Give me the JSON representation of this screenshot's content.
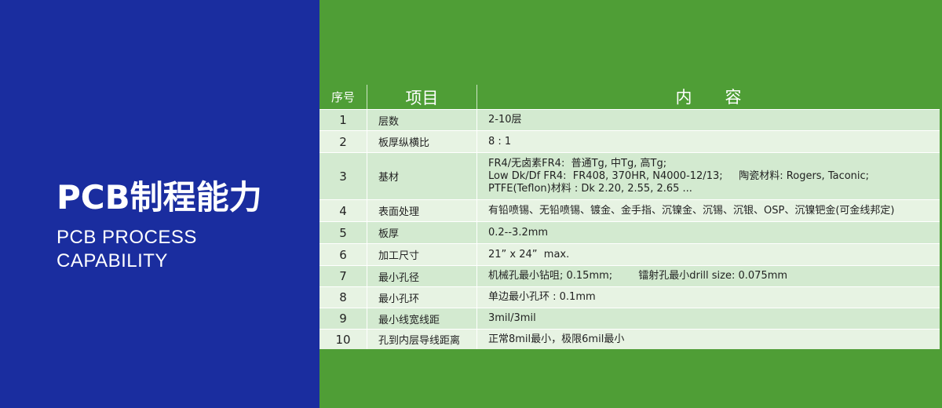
{
  "left_panel": {
    "title": "PCB制程能力",
    "subtitle_line1": "PCB PROCESS",
    "subtitle_line2": "CAPABILITY"
  },
  "table": {
    "headers": [
      "序号",
      "项目",
      "内　　容"
    ],
    "rows": [
      {
        "no": "1",
        "item": "层数",
        "content": [
          "2-10层"
        ]
      },
      {
        "no": "2",
        "item": "板厚纵横比",
        "content": [
          "8 : 1"
        ]
      },
      {
        "no": "3",
        "item": "基材",
        "content": [
          "FR4/无卤素FR4:  普通Tg, 中Tg, 高Tg;",
          "Low Dk/Df FR4:  FR408, 370HR, N4000-12/13;     陶瓷材料: Rogers, Taconic;",
          "PTFE(Teflon)材料 : Dk 2.20, 2.55, 2.65 ..."
        ]
      },
      {
        "no": "4",
        "item": "表面处理",
        "content": [
          "有铅喷锡、无铅喷锡、镀金、金手指、沉镍金、沉锡、沉银、OSP、沉镍钯金(可金线邦定)"
        ]
      },
      {
        "no": "5",
        "item": "板厚",
        "content": [
          "0.2--3.2mm"
        ]
      },
      {
        "no": "6",
        "item": "加工尺寸",
        "content": [
          "21” x 24”  max."
        ]
      },
      {
        "no": "7",
        "item": "最小孔径",
        "content": [
          "机械孔最小钻咀; 0.15mm;        镭射孔最小drill size: 0.075mm"
        ]
      },
      {
        "no": "8",
        "item": "最小孔环",
        "content": [
          "单边最小孔环 : 0.1mm"
        ]
      },
      {
        "no": "9",
        "item": "最小线宽线距",
        "content": [
          "3mil/3mil"
        ]
      },
      {
        "no": "10",
        "item": "孔到内层导线距离",
        "content": [
          "正常8mil最小，极限6mil最小"
        ]
      }
    ]
  },
  "colors": {
    "left_bg": "#1a2d9f",
    "right_bg": "#4f9e36",
    "row_a": "#d3ead0",
    "row_b": "#e7f3e3"
  }
}
